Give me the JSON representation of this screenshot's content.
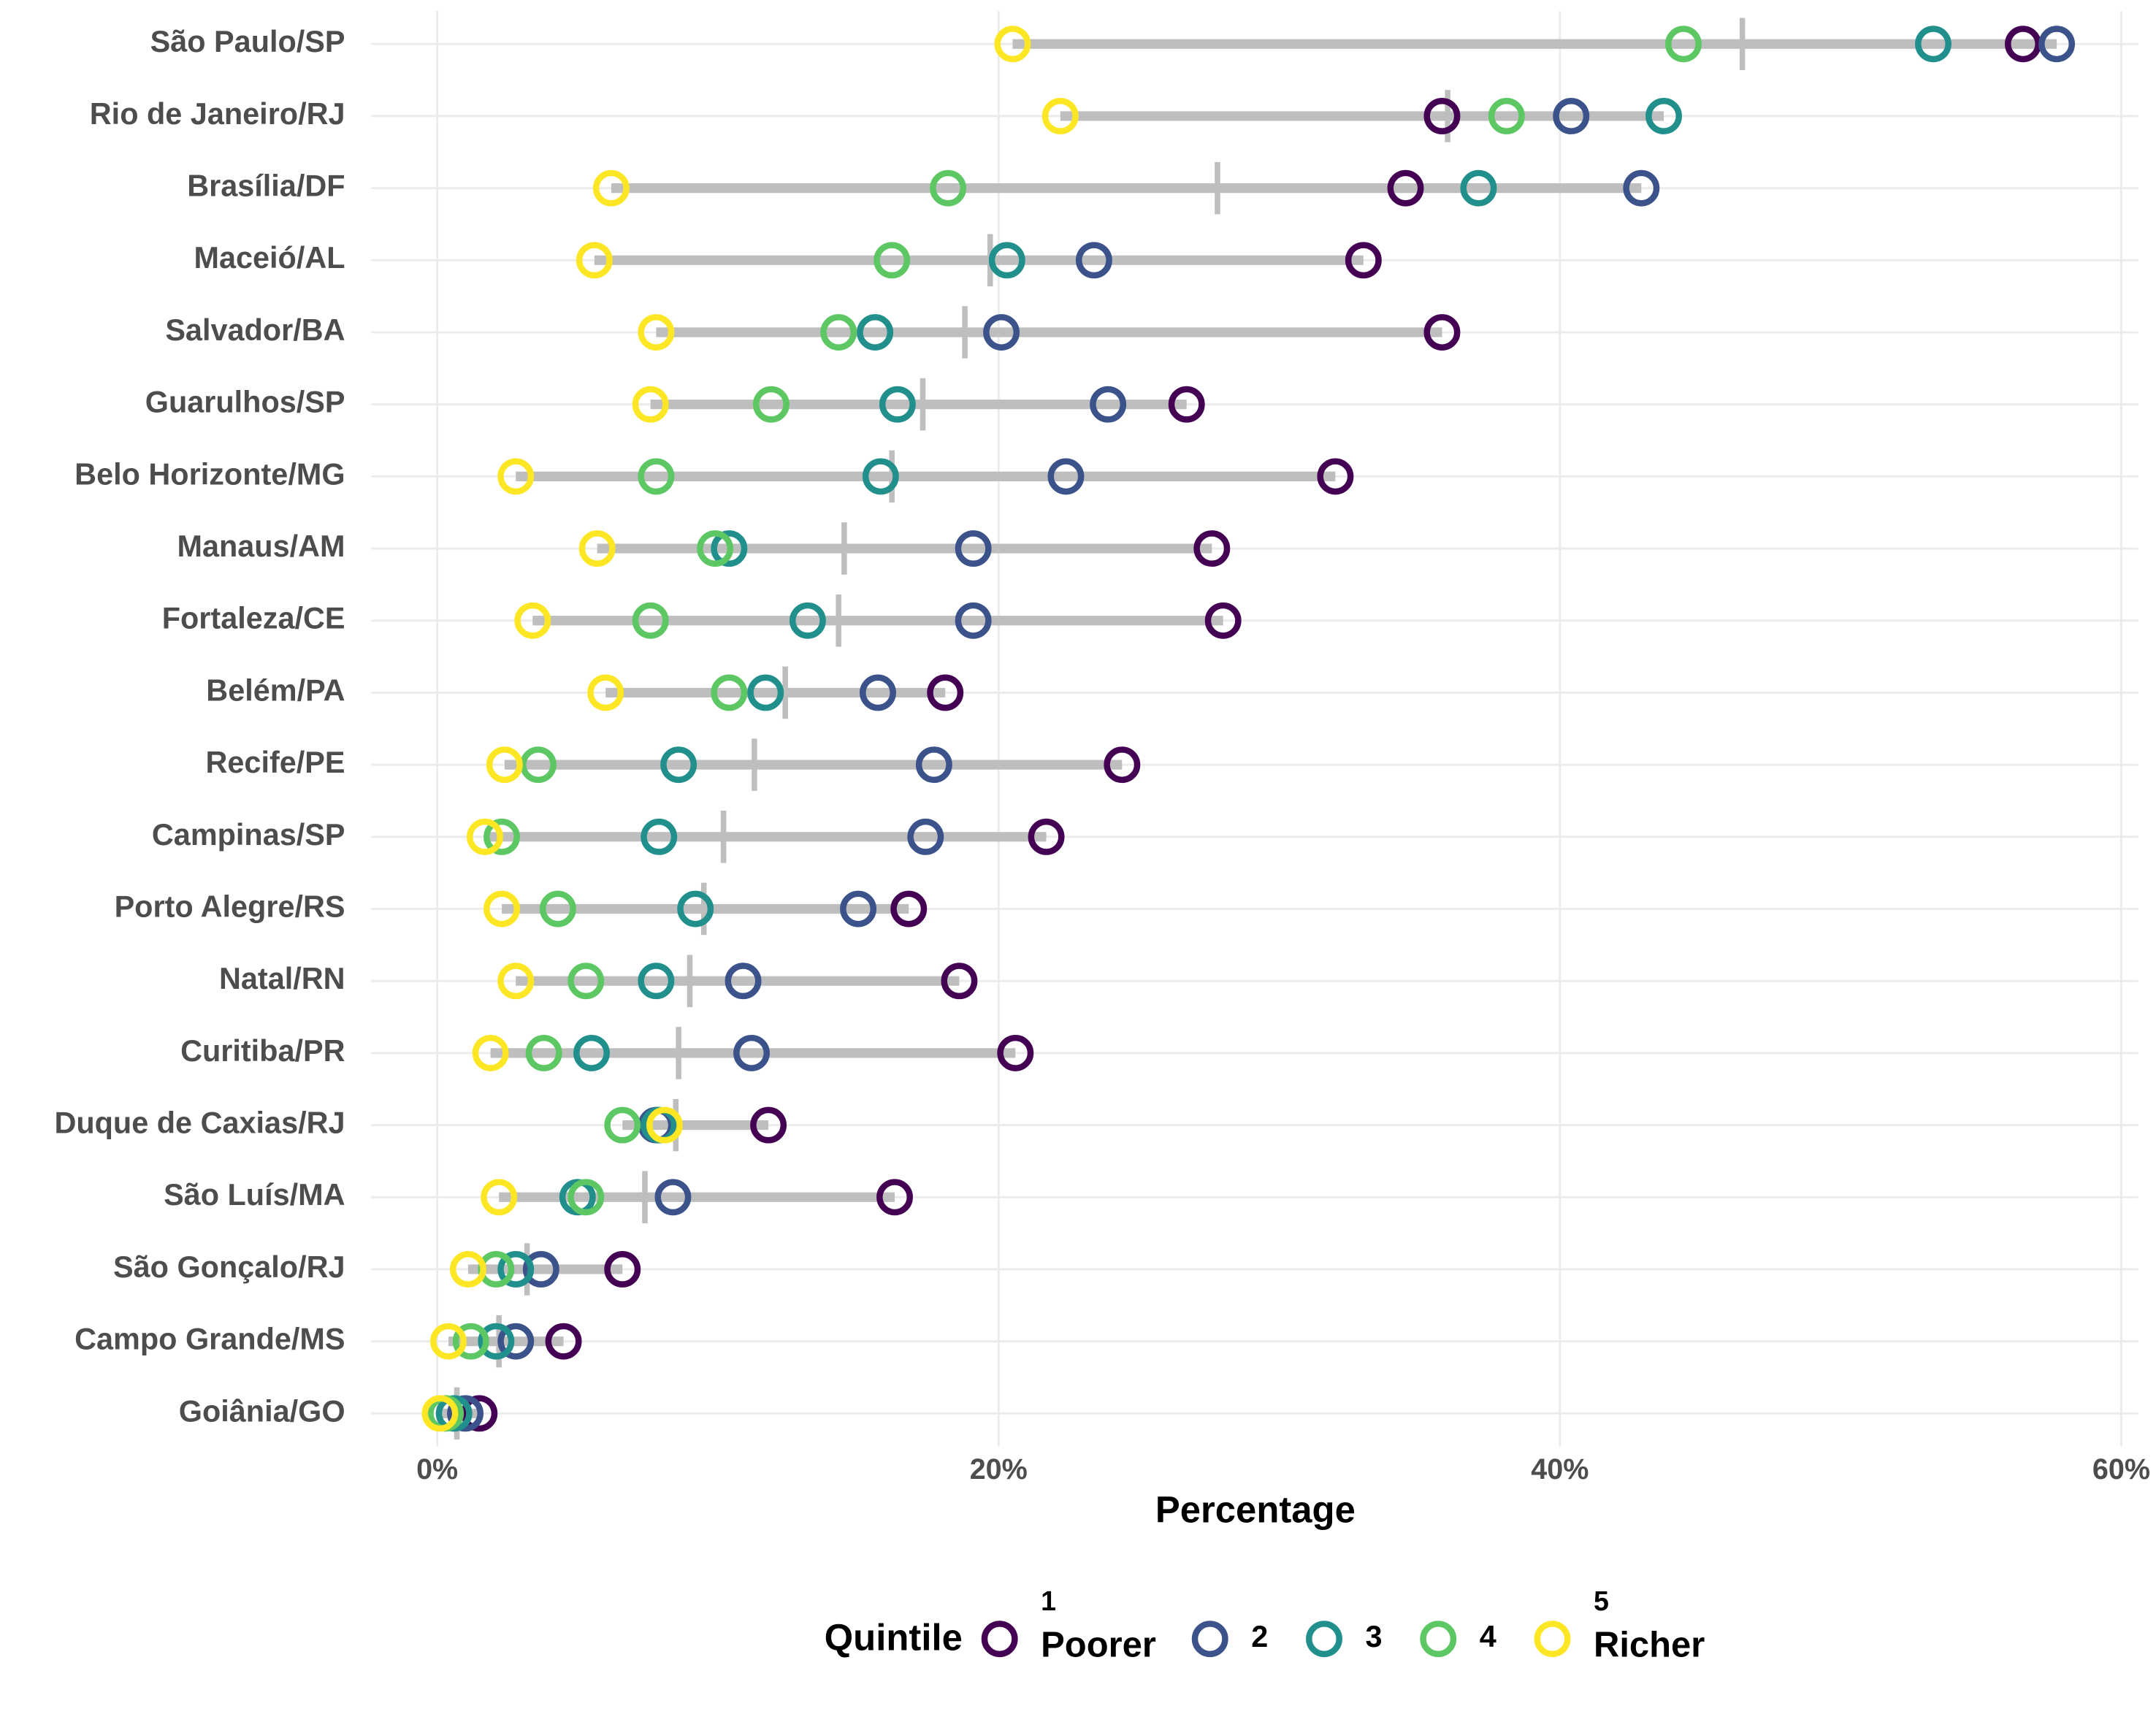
{
  "chart_data": {
    "type": "dumbbell",
    "x_label": "Percentage",
    "legend_title": "Quintile",
    "categories": [
      "São Paulo/SP",
      "Rio de Janeiro/RJ",
      "Brasília/DF",
      "Maceió/AL",
      "Salvador/BA",
      "Guarulhos/SP",
      "Belo Horizonte/MG",
      "Manaus/AM",
      "Fortaleza/CE",
      "Belém/PA",
      "Recife/PE",
      "Campinas/SP",
      "Porto Alegre/RS",
      "Natal/RN",
      "Curitiba/PR",
      "Duque de Caxias/RJ",
      "São Luís/MA",
      "São Gonçalo/RJ",
      "Campo Grande/MS",
      "Goiânia/GO"
    ],
    "series": [
      {
        "name": "1\nPoorer",
        "color": "#440154",
        "values": [
          56.5,
          35.8,
          34.5,
          33.0,
          35.8,
          26.7,
          32.0,
          27.6,
          28.0,
          18.1,
          24.4,
          21.7,
          16.8,
          18.6,
          20.6,
          11.8,
          16.3,
          6.6,
          4.5,
          1.5
        ]
      },
      {
        "name": "2",
        "color": "#3b528b",
        "values": [
          57.7,
          40.4,
          42.9,
          23.4,
          20.1,
          23.9,
          22.4,
          19.1,
          19.1,
          15.7,
          17.7,
          17.4,
          15.0,
          10.9,
          11.2,
          7.8,
          8.4,
          3.7,
          2.8,
          1.0
        ]
      },
      {
        "name": "3",
        "color": "#21908c",
        "values": [
          53.3,
          43.7,
          37.1,
          20.3,
          15.6,
          16.4,
          15.8,
          10.4,
          13.2,
          11.7,
          8.6,
          7.9,
          9.2,
          7.8,
          5.5,
          7.9,
          5.0,
          2.8,
          2.1,
          0.6
        ]
      },
      {
        "name": "4",
        "color": "#5dc863",
        "values": [
          44.4,
          38.1,
          18.2,
          16.2,
          14.3,
          11.9,
          7.8,
          9.9,
          7.6,
          10.4,
          3.6,
          2.3,
          4.3,
          5.3,
          3.8,
          6.6,
          5.3,
          2.1,
          1.2,
          0.3
        ]
      },
      {
        "name": "5\nRicher",
        "color": "#fde725",
        "values": [
          20.5,
          22.2,
          6.2,
          5.6,
          7.8,
          7.6,
          2.8,
          5.7,
          3.4,
          6.0,
          2.4,
          1.7,
          2.3,
          2.8,
          1.9,
          8.1,
          2.2,
          1.1,
          0.4,
          0.1
        ]
      }
    ],
    "means": [
      46.5,
      36.0,
      27.8,
      19.7,
      18.8,
      17.3,
      16.2,
      14.5,
      14.3,
      12.4,
      11.3,
      10.2,
      9.5,
      9.0,
      8.6,
      8.5,
      7.4,
      3.2,
      2.2,
      0.7
    ],
    "xlim": [
      -2.35,
      60.6
    ],
    "xticks": [
      {
        "value": 0,
        "label": "0%"
      },
      {
        "value": 20,
        "label": "20%"
      },
      {
        "value": 40,
        "label": "40%"
      },
      {
        "value": 60,
        "label": "60%"
      }
    ],
    "grid": true,
    "legend_position": "bottom"
  }
}
